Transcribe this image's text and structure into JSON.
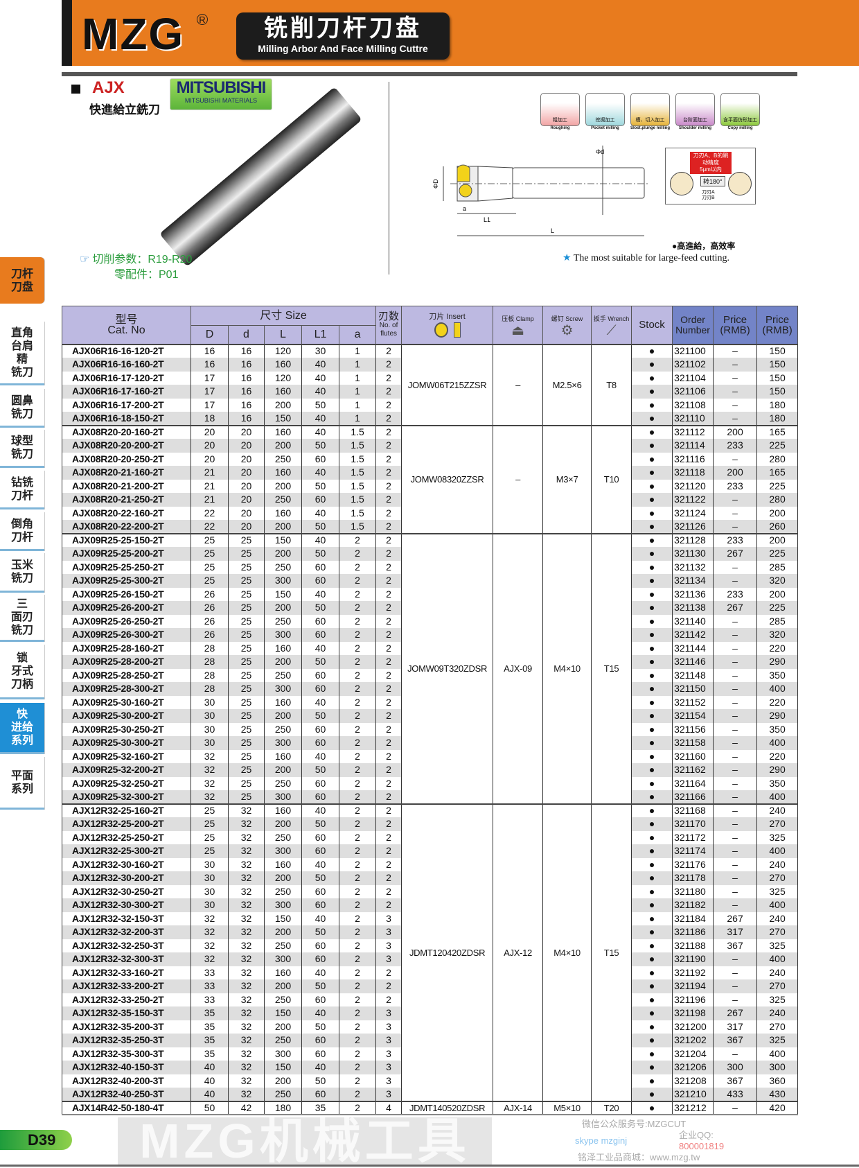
{
  "header": {
    "brand": "MZG",
    "reg": "R",
    "title_cn": "铣削刀杆刀盘",
    "title_en": "Milling Arbor And Face Milling Cuttre",
    "color": "#e87b1e"
  },
  "product": {
    "series": "AJX",
    "name_cn": "快進給立銑刀",
    "maker_logo": "MITSUBISHI",
    "maker_sub": "MITSUBISHI MATERIALS",
    "params": "切削参数：R19-R20",
    "parts": "零配件：P01"
  },
  "operations": [
    {
      "cn": "粗加工",
      "en": "Roughing",
      "color": "#f2a5a5"
    },
    {
      "cn": "挖掘加工",
      "en": "Pocket milling",
      "color": "#9fd8dd"
    },
    {
      "cn": "槽、切入加工",
      "en": "Slost.plunge milling",
      "color": "#e6b33a"
    },
    {
      "cn": "台阶面加工",
      "en": "Shoulder milling",
      "color": "#c98ac9"
    },
    {
      "cn": "含平面仿形加工",
      "en": "Copy milling",
      "color": "#8cc83c"
    }
  ],
  "diagram": {
    "D": "ΦD",
    "d": "Φd",
    "a": "a",
    "L1": "L1",
    "L": "L"
  },
  "runout": {
    "note": "刀刃A、B的跳动精度",
    "value": "5μm以内",
    "rotate": "转180°",
    "edge_a": "刀刃A",
    "edge_b": "刀刃B"
  },
  "features": {
    "cn": "●高進給，高效率",
    "en": "The most suitable for large-feed cutting."
  },
  "sidebar": [
    {
      "label": "刀杆\n刀盘",
      "state": "section"
    },
    {
      "label": "直角\n台肩\n精\n铣刀"
    },
    {
      "label": "圆鼻\n铣刀"
    },
    {
      "label": "球型\n铣刀"
    },
    {
      "label": "钻铣\n刀杆"
    },
    {
      "label": "倒角\n刀杆"
    },
    {
      "label": "玉米\n铣刀"
    },
    {
      "label": "三\n面刃\n铣刀"
    },
    {
      "label": "锁\n牙式\n刀柄"
    },
    {
      "label": "快\n进给\n系列",
      "state": "active"
    },
    {
      "label": "平面\n系列"
    }
  ],
  "table": {
    "headers": {
      "cat_cn": "型号",
      "cat_en": "Cat. No",
      "size": "尺寸 Size",
      "D": "D",
      "d": "d",
      "L": "L",
      "L1": "L1",
      "a": "a",
      "flutes_cn": "刃数",
      "flutes_en": "No. of flutes",
      "insert": "刀片 Insert",
      "clamp": "压板 Clamp",
      "screw": "螺钉 Screw",
      "wrench": "扳手 Wrench",
      "stock": "Stock",
      "order": "Order Number",
      "price1": "Price (RMB)",
      "price2": "Price (RMB)"
    },
    "stock_mark": "●",
    "groups": [
      {
        "insert": "JOMW06T215ZZSR",
        "clamp": "–",
        "screw": "M2.5×6",
        "wrench": "T8",
        "rows": [
          [
            "AJX06R16-16-120-2T",
            "16",
            "16",
            "120",
            "30",
            "1",
            "2",
            "321100",
            "–",
            "150"
          ],
          [
            "AJX06R16-16-160-2T",
            "16",
            "16",
            "160",
            "40",
            "1",
            "2",
            "321102",
            "–",
            "150"
          ],
          [
            "AJX06R16-17-120-2T",
            "17",
            "16",
            "120",
            "40",
            "1",
            "2",
            "321104",
            "–",
            "150"
          ],
          [
            "AJX06R16-17-160-2T",
            "17",
            "16",
            "160",
            "40",
            "1",
            "2",
            "321106",
            "–",
            "150"
          ],
          [
            "AJX06R16-17-200-2T",
            "17",
            "16",
            "200",
            "50",
            "1",
            "2",
            "321108",
            "–",
            "180"
          ],
          [
            "AJX06R16-18-150-2T",
            "18",
            "16",
            "150",
            "40",
            "1",
            "2",
            "321110",
            "–",
            "180"
          ]
        ]
      },
      {
        "insert": "JOMW08320ZZSR",
        "clamp": "–",
        "screw": "M3×7",
        "wrench": "T10",
        "rows": [
          [
            "AJX08R20-20-160-2T",
            "20",
            "20",
            "160",
            "40",
            "1.5",
            "2",
            "321112",
            "200",
            "165"
          ],
          [
            "AJX08R20-20-200-2T",
            "20",
            "20",
            "200",
            "50",
            "1.5",
            "2",
            "321114",
            "233",
            "225"
          ],
          [
            "AJX08R20-20-250-2T",
            "20",
            "20",
            "250",
            "60",
            "1.5",
            "2",
            "321116",
            "–",
            "280"
          ],
          [
            "AJX08R20-21-160-2T",
            "21",
            "20",
            "160",
            "40",
            "1.5",
            "2",
            "321118",
            "200",
            "165"
          ],
          [
            "AJX08R20-21-200-2T",
            "21",
            "20",
            "200",
            "50",
            "1.5",
            "2",
            "321120",
            "233",
            "225"
          ],
          [
            "AJX08R20-21-250-2T",
            "21",
            "20",
            "250",
            "60",
            "1.5",
            "2",
            "321122",
            "–",
            "280"
          ],
          [
            "AJX08R20-22-160-2T",
            "22",
            "20",
            "160",
            "40",
            "1.5",
            "2",
            "321124",
            "–",
            "200"
          ],
          [
            "AJX08R20-22-200-2T",
            "22",
            "20",
            "200",
            "50",
            "1.5",
            "2",
            "321126",
            "–",
            "260"
          ]
        ]
      },
      {
        "insert": "JOMW09T320ZDSR",
        "clamp": "AJX-09",
        "screw": "M4×10",
        "wrench": "T15",
        "rows": [
          [
            "AJX09R25-25-150-2T",
            "25",
            "25",
            "150",
            "40",
            "2",
            "2",
            "321128",
            "233",
            "200"
          ],
          [
            "AJX09R25-25-200-2T",
            "25",
            "25",
            "200",
            "50",
            "2",
            "2",
            "321130",
            "267",
            "225"
          ],
          [
            "AJX09R25-25-250-2T",
            "25",
            "25",
            "250",
            "60",
            "2",
            "2",
            "321132",
            "–",
            "285"
          ],
          [
            "AJX09R25-25-300-2T",
            "25",
            "25",
            "300",
            "60",
            "2",
            "2",
            "321134",
            "–",
            "320"
          ],
          [
            "AJX09R25-26-150-2T",
            "26",
            "25",
            "150",
            "40",
            "2",
            "2",
            "321136",
            "233",
            "200"
          ],
          [
            "AJX09R25-26-200-2T",
            "26",
            "25",
            "200",
            "50",
            "2",
            "2",
            "321138",
            "267",
            "225"
          ],
          [
            "AJX09R25-26-250-2T",
            "26",
            "25",
            "250",
            "60",
            "2",
            "2",
            "321140",
            "–",
            "285"
          ],
          [
            "AJX09R25-26-300-2T",
            "26",
            "25",
            "300",
            "60",
            "2",
            "2",
            "321142",
            "–",
            "320"
          ],
          [
            "AJX09R25-28-160-2T",
            "28",
            "25",
            "160",
            "40",
            "2",
            "2",
            "321144",
            "–",
            "220"
          ],
          [
            "AJX09R25-28-200-2T",
            "28",
            "25",
            "200",
            "50",
            "2",
            "2",
            "321146",
            "–",
            "290"
          ],
          [
            "AJX09R25-28-250-2T",
            "28",
            "25",
            "250",
            "60",
            "2",
            "2",
            "321148",
            "–",
            "350"
          ],
          [
            "AJX09R25-28-300-2T",
            "28",
            "25",
            "300",
            "60",
            "2",
            "2",
            "321150",
            "–",
            "400"
          ],
          [
            "AJX09R25-30-160-2T",
            "30",
            "25",
            "160",
            "40",
            "2",
            "2",
            "321152",
            "–",
            "220"
          ],
          [
            "AJX09R25-30-200-2T",
            "30",
            "25",
            "200",
            "50",
            "2",
            "2",
            "321154",
            "–",
            "290"
          ],
          [
            "AJX09R25-30-250-2T",
            "30",
            "25",
            "250",
            "60",
            "2",
            "2",
            "321156",
            "–",
            "350"
          ],
          [
            "AJX09R25-30-300-2T",
            "30",
            "25",
            "300",
            "60",
            "2",
            "2",
            "321158",
            "–",
            "400"
          ],
          [
            "AJX09R25-32-160-2T",
            "32",
            "25",
            "160",
            "40",
            "2",
            "2",
            "321160",
            "–",
            "220"
          ],
          [
            "AJX09R25-32-200-2T",
            "32",
            "25",
            "200",
            "50",
            "2",
            "2",
            "321162",
            "–",
            "290"
          ],
          [
            "AJX09R25-32-250-2T",
            "32",
            "25",
            "250",
            "60",
            "2",
            "2",
            "321164",
            "–",
            "350"
          ],
          [
            "AJX09R25-32-300-2T",
            "32",
            "25",
            "300",
            "60",
            "2",
            "2",
            "321166",
            "–",
            "400"
          ]
        ]
      },
      {
        "insert": "JDMT120420ZDSR",
        "clamp": "AJX-12",
        "screw": "M4×10",
        "wrench": "T15",
        "rows": [
          [
            "AJX12R32-25-160-2T",
            "25",
            "32",
            "160",
            "40",
            "2",
            "2",
            "321168",
            "–",
            "240"
          ],
          [
            "AJX12R32-25-200-2T",
            "25",
            "32",
            "200",
            "50",
            "2",
            "2",
            "321170",
            "–",
            "270"
          ],
          [
            "AJX12R32-25-250-2T",
            "25",
            "32",
            "250",
            "60",
            "2",
            "2",
            "321172",
            "–",
            "325"
          ],
          [
            "AJX12R32-25-300-2T",
            "25",
            "32",
            "300",
            "60",
            "2",
            "2",
            "321174",
            "–",
            "400"
          ],
          [
            "AJX12R32-30-160-2T",
            "30",
            "32",
            "160",
            "40",
            "2",
            "2",
            "321176",
            "–",
            "240"
          ],
          [
            "AJX12R32-30-200-2T",
            "30",
            "32",
            "200",
            "50",
            "2",
            "2",
            "321178",
            "–",
            "270"
          ],
          [
            "AJX12R32-30-250-2T",
            "30",
            "32",
            "250",
            "60",
            "2",
            "2",
            "321180",
            "–",
            "325"
          ],
          [
            "AJX12R32-30-300-2T",
            "30",
            "32",
            "300",
            "60",
            "2",
            "2",
            "321182",
            "–",
            "400"
          ],
          [
            "AJX12R32-32-150-3T",
            "32",
            "32",
            "150",
            "40",
            "2",
            "3",
            "321184",
            "267",
            "240"
          ],
          [
            "AJX12R32-32-200-3T",
            "32",
            "32",
            "200",
            "50",
            "2",
            "3",
            "321186",
            "317",
            "270"
          ],
          [
            "AJX12R32-32-250-3T",
            "32",
            "32",
            "250",
            "60",
            "2",
            "3",
            "321188",
            "367",
            "325"
          ],
          [
            "AJX12R32-32-300-3T",
            "32",
            "32",
            "300",
            "60",
            "2",
            "3",
            "321190",
            "–",
            "400"
          ],
          [
            "AJX12R32-33-160-2T",
            "33",
            "32",
            "160",
            "40",
            "2",
            "2",
            "321192",
            "–",
            "240"
          ],
          [
            "AJX12R32-33-200-2T",
            "33",
            "32",
            "200",
            "50",
            "2",
            "2",
            "321194",
            "–",
            "270"
          ],
          [
            "AJX12R32-33-250-2T",
            "33",
            "32",
            "250",
            "60",
            "2",
            "2",
            "321196",
            "–",
            "325"
          ],
          [
            "AJX12R32-35-150-3T",
            "35",
            "32",
            "150",
            "40",
            "2",
            "3",
            "321198",
            "267",
            "240"
          ],
          [
            "AJX12R32-35-200-3T",
            "35",
            "32",
            "200",
            "50",
            "2",
            "3",
            "321200",
            "317",
            "270"
          ],
          [
            "AJX12R32-35-250-3T",
            "35",
            "32",
            "250",
            "60",
            "2",
            "3",
            "321202",
            "367",
            "325"
          ],
          [
            "AJX12R32-35-300-3T",
            "35",
            "32",
            "300",
            "60",
            "2",
            "3",
            "321204",
            "–",
            "400"
          ],
          [
            "AJX12R32-40-150-3T",
            "40",
            "32",
            "150",
            "40",
            "2",
            "3",
            "321206",
            "300",
            "300"
          ],
          [
            "AJX12R32-40-200-3T",
            "40",
            "32",
            "200",
            "50",
            "2",
            "3",
            "321208",
            "367",
            "360"
          ],
          [
            "AJX12R32-40-250-3T",
            "40",
            "32",
            "250",
            "60",
            "2",
            "3",
            "321210",
            "433",
            "430"
          ]
        ]
      },
      {
        "insert": "JDMT140520ZDSR",
        "clamp": "AJX-14",
        "screw": "M5×10",
        "wrench": "T20",
        "rows": [
          [
            "AJX14R42-50-180-4T",
            "50",
            "42",
            "180",
            "35",
            "2",
            "4",
            "321212",
            "–",
            "420"
          ]
        ]
      }
    ]
  },
  "watermark": "MZG机械工具",
  "footer": {
    "page": "D39",
    "wechat": "微信公众服务号:MZGCUT",
    "skype": "skype mzginj",
    "qq_label": "企业QQ:",
    "qq": "800001819",
    "shop": "铭泽工业品商城：www.mzg.tw"
  }
}
